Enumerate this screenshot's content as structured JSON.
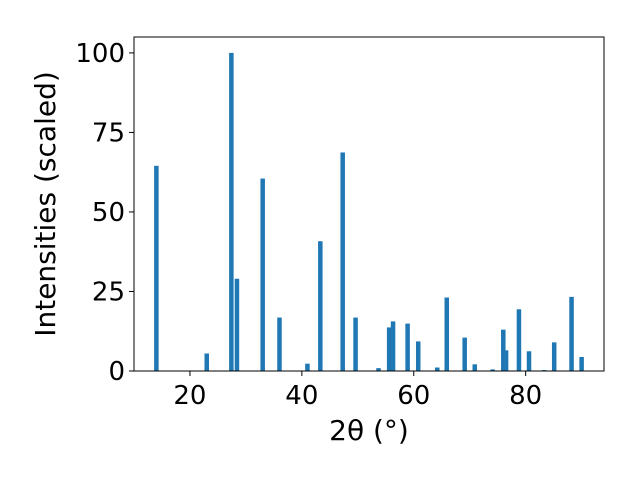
{
  "chart_data": {
    "type": "bar",
    "xlabel": "2θ (°)",
    "ylabel": "Intensities (scaled)",
    "xlim": [
      10,
      94
    ],
    "ylim": [
      0,
      105
    ],
    "xticks": [
      20,
      40,
      60,
      80
    ],
    "yticks": [
      0,
      25,
      50,
      75,
      100
    ],
    "grid": false,
    "color": "#1f77b4",
    "bars": [
      {
        "x": 14.0,
        "y": 64.5
      },
      {
        "x": 23.0,
        "y": 5.5
      },
      {
        "x": 27.4,
        "y": 100.0
      },
      {
        "x": 28.4,
        "y": 29.0
      },
      {
        "x": 33.0,
        "y": 60.5
      },
      {
        "x": 36.0,
        "y": 16.8
      },
      {
        "x": 41.0,
        "y": 2.3
      },
      {
        "x": 43.3,
        "y": 40.8
      },
      {
        "x": 47.3,
        "y": 68.7
      },
      {
        "x": 49.6,
        "y": 16.8
      },
      {
        "x": 53.7,
        "y": 0.9
      },
      {
        "x": 55.6,
        "y": 13.7
      },
      {
        "x": 56.3,
        "y": 15.6
      },
      {
        "x": 58.9,
        "y": 14.9
      },
      {
        "x": 60.8,
        "y": 9.3
      },
      {
        "x": 64.2,
        "y": 1.1
      },
      {
        "x": 65.9,
        "y": 23.1
      },
      {
        "x": 69.1,
        "y": 10.5
      },
      {
        "x": 70.9,
        "y": 2.1
      },
      {
        "x": 74.1,
        "y": 0.5
      },
      {
        "x": 76.0,
        "y": 13.0
      },
      {
        "x": 76.5,
        "y": 6.5
      },
      {
        "x": 78.8,
        "y": 19.4
      },
      {
        "x": 80.6,
        "y": 6.2
      },
      {
        "x": 83.3,
        "y": 0.3
      },
      {
        "x": 85.1,
        "y": 9.0
      },
      {
        "x": 88.2,
        "y": 23.3
      },
      {
        "x": 90.0,
        "y": 4.4
      }
    ]
  }
}
